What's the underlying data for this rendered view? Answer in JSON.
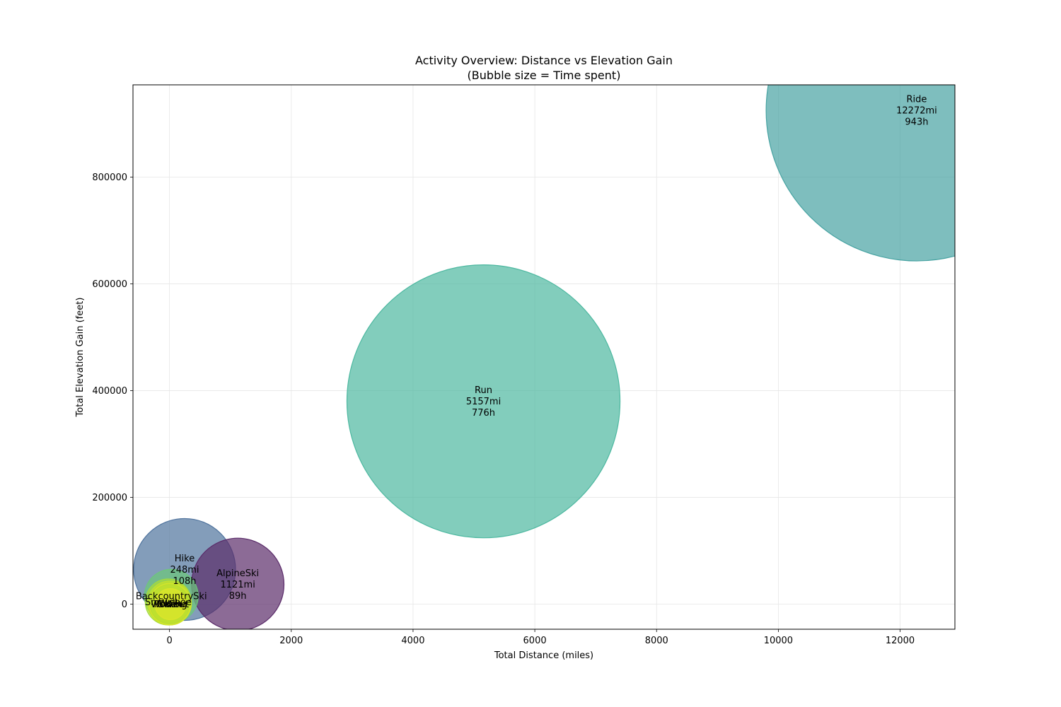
{
  "chart_data": {
    "type": "scatter",
    "variant": "bubble",
    "title": "Activity Overview: Distance vs Elevation Gain",
    "subtitle": "(Bubble size = Time spent)",
    "xlabel": "Total Distance (miles)",
    "ylabel": "Total Elevation Gain (feet)",
    "xlim": [
      -600,
      12900
    ],
    "ylim": [
      -47000,
      973000
    ],
    "xticks": [
      0,
      2000,
      4000,
      6000,
      8000,
      10000,
      12000
    ],
    "yticks": [
      0,
      200000,
      400000,
      600000,
      800000
    ],
    "grid": true,
    "legend": "none",
    "size_encoding": "time spent (hours)",
    "points": [
      {
        "label": "Ride",
        "x": 12272,
        "y": 925000,
        "hours": 943,
        "color": "#47A3A2",
        "label_lines": [
          "Ride",
          "12272mi",
          "943h"
        ]
      },
      {
        "label": "Run",
        "x": 5157,
        "y": 380000,
        "hours": 776,
        "color": "#4DB8A0",
        "label_lines": [
          "Run",
          "5157mi",
          "776h"
        ]
      },
      {
        "label": "Hike",
        "x": 248,
        "y": 65000,
        "hours": 108,
        "color": "#4F739D",
        "label_lines": [
          "Hike",
          "248mi",
          "108h"
        ]
      },
      {
        "label": "AlpineSki",
        "x": 1121,
        "y": 37000,
        "hours": 89,
        "color": "#5B2C6A",
        "label_lines": [
          "AlpineSki",
          "1121mi",
          "89h"
        ]
      },
      {
        "label": "BackcountrySki",
        "x": 30,
        "y": 15000,
        "hours": 30,
        "color": "#6CC77A",
        "label_lines": [
          "BackcountrySki"
        ]
      },
      {
        "label": "Snowshoe",
        "x": -20,
        "y": 4000,
        "hours": 22,
        "color": "#A6DB3A",
        "label_lines": [
          "Snowshoe"
        ]
      },
      {
        "label": "Walk",
        "x": 0,
        "y": 2000,
        "hours": 20,
        "color": "#C3E12C",
        "label_lines": [
          "Walk"
        ]
      },
      {
        "label": "Swim",
        "x": 10,
        "y": 0,
        "hours": 18,
        "color": "#D4E429",
        "label_lines": [
          "Swim"
        ]
      },
      {
        "label": "Workout",
        "x": 5,
        "y": 0,
        "hours": 16,
        "color": "#B8DE30",
        "label_lines": [
          "Workout"
        ]
      },
      {
        "label": "Rowing",
        "x": 15,
        "y": 0,
        "hours": 10,
        "color": "#DDE52A",
        "label_lines": [
          "Rowing"
        ]
      }
    ]
  }
}
